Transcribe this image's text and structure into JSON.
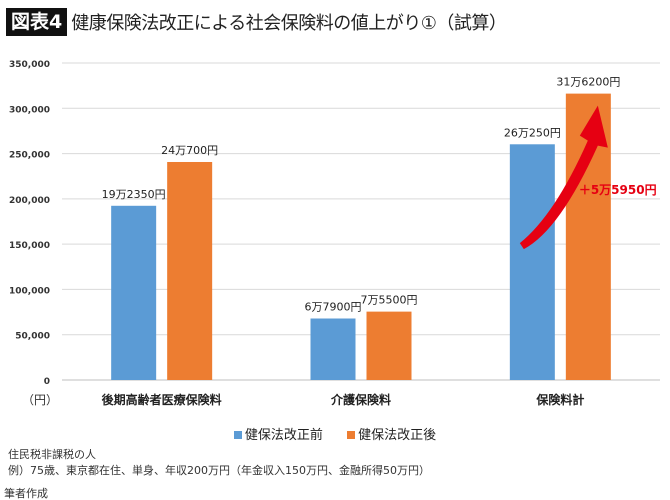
{
  "header": {
    "badge": "図表4",
    "title": "健康保険法改正による社会保険料の値上がり①（試算）"
  },
  "chart_data": {
    "type": "bar",
    "title": "健康保険法改正による社会保険料の値上がり①（試算）",
    "ylabel": "（円）",
    "ylim": [
      0,
      350000
    ],
    "yticks": [
      0,
      50000,
      100000,
      150000,
      200000,
      250000,
      300000,
      350000
    ],
    "ytick_labels": [
      "0",
      "50,000",
      "100,000",
      "150,000",
      "200,000",
      "250,000",
      "300,000",
      "350,000"
    ],
    "grid": true,
    "legend_position": "bottom",
    "categories": [
      "後期高齢者医療保険料",
      "介護保険料",
      "保険料計"
    ],
    "series": [
      {
        "name": "健保法改正前",
        "color": "#5b9bd5",
        "values": [
          192350,
          67900,
          260250
        ],
        "labels": [
          "19万2350円",
          "6万7900円",
          "26万250円"
        ]
      },
      {
        "name": "健保法改正後",
        "color": "#ed7d31",
        "values": [
          240700,
          75500,
          316200
        ],
        "labels": [
          "24万700円",
          "7万5500円",
          "31万6200円"
        ]
      }
    ],
    "annotation": {
      "text": "＋5万5950円",
      "color": "#e60012",
      "arrow_color": "#e60012"
    }
  },
  "notes": {
    "line1": "住民税非課税の人",
    "line2": "例）75歳、東京都在住、単身、年収200万円（年金収入150万円、金融所得50万円）",
    "source": "筆者作成"
  }
}
